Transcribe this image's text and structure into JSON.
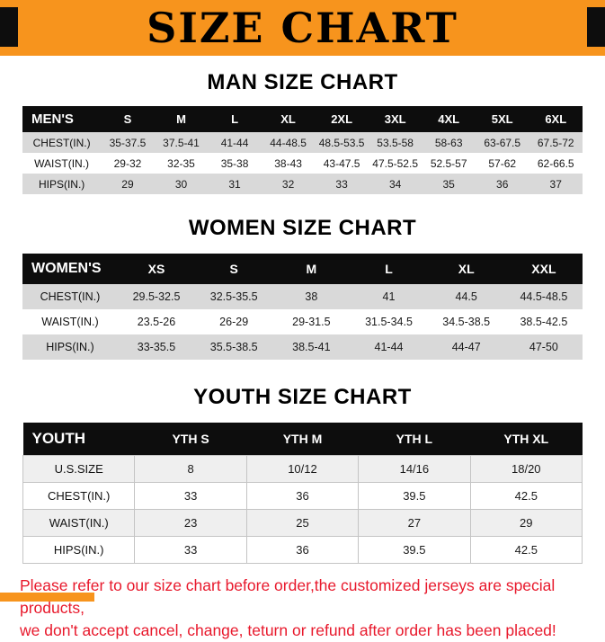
{
  "banner": {
    "title": "SIZE CHART"
  },
  "sections": [
    {
      "heading": "MAN SIZE CHART",
      "table": {
        "header": [
          "MEN'S",
          "S",
          "M",
          "L",
          "XL",
          "2XL",
          "3XL",
          "4XL",
          "5XL",
          "6XL"
        ],
        "rows": [
          {
            "label": "CHEST(IN.)",
            "values": [
              "35-37.5",
              "37.5-41",
              "41-44",
              "44-48.5",
              "48.5-53.5",
              "53.5-58",
              "58-63",
              "63-67.5",
              "67.5-72"
            ]
          },
          {
            "label": "WAIST(IN.)",
            "values": [
              "29-32",
              "32-35",
              "35-38",
              "38-43",
              "43-47.5",
              "47.5-52.5",
              "52.5-57",
              "57-62",
              "62-66.5"
            ]
          },
          {
            "label": "HIPS(IN.)",
            "values": [
              "29",
              "30",
              "31",
              "32",
              "33",
              "34",
              "35",
              "36",
              "37"
            ]
          }
        ]
      }
    },
    {
      "heading": "WOMEN SIZE CHART",
      "table": {
        "header": [
          "WOMEN'S",
          "XS",
          "S",
          "M",
          "L",
          "XL",
          "XXL"
        ],
        "rows": [
          {
            "label": "CHEST(IN.)",
            "values": [
              "29.5-32.5",
              "32.5-35.5",
              "38",
              "41",
              "44.5",
              "44.5-48.5"
            ]
          },
          {
            "label": "WAIST(IN.)",
            "values": [
              "23.5-26",
              "26-29",
              "29-31.5",
              "31.5-34.5",
              "34.5-38.5",
              "38.5-42.5"
            ]
          },
          {
            "label": "HIPS(IN.)",
            "values": [
              "33-35.5",
              "35.5-38.5",
              "38.5-41",
              "41-44",
              "44-47",
              "47-50"
            ]
          }
        ]
      }
    },
    {
      "heading": "YOUTH SIZE CHART",
      "table": {
        "header": [
          "YOUTH",
          "YTH S",
          "YTH M",
          "YTH L",
          "YTH XL"
        ],
        "rows": [
          {
            "label": "U.S.SIZE",
            "values": [
              "8",
              "10/12",
              "14/16",
              "18/20"
            ]
          },
          {
            "label": "CHEST(IN.)",
            "values": [
              "33",
              "36",
              "39.5",
              "42.5"
            ]
          },
          {
            "label": "WAIST(IN.)",
            "values": [
              "23",
              "25",
              "27",
              "29"
            ]
          },
          {
            "label": "HIPS(IN.)",
            "values": [
              "33",
              "36",
              "39.5",
              "42.5"
            ]
          }
        ]
      }
    }
  ],
  "footer": {
    "line1": "Please refer to our size chart before order,the customized jerseys are special products,",
    "line2": "we don't accept cancel, change, teturn or refund after order has been placed!"
  },
  "colors": {
    "orange": "#F7941D",
    "black": "#0d0d0d",
    "red": "#E8192C",
    "stripe": "#d9d9d9",
    "stripe-light": "#efefef",
    "tborder": "#c4c4c4"
  }
}
